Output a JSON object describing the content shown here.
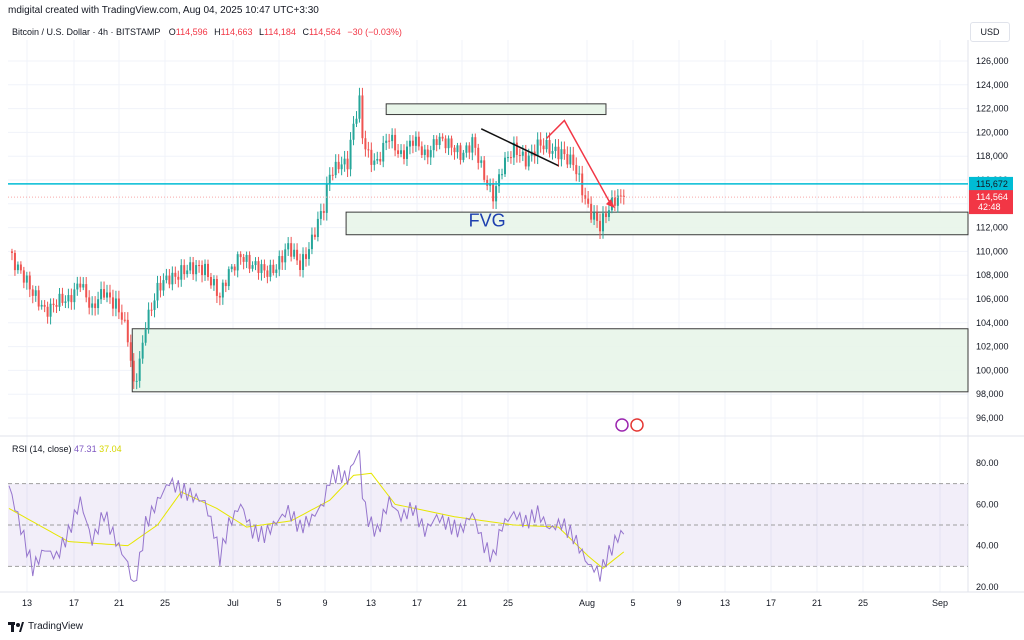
{
  "header": {
    "credit": "mdigital created with TradingView.com, Aug 04, 2025 10:47 UTC+3:30"
  },
  "symbol": {
    "name": "Bitcoin / U.S. Dollar · 4h · BITSTAMP",
    "open_label": "O",
    "open": "114,596",
    "high_label": "H",
    "high": "114,663",
    "low_label": "L",
    "low": "114,184",
    "close_label": "C",
    "close": "114,564",
    "change": "−30 (−0.03%)"
  },
  "currency": "USD",
  "footer": {
    "brand": "TradingView"
  },
  "colors": {
    "up": "#26a69a",
    "down": "#ef5350",
    "level": "#00bcd4",
    "rsi": "#9575cd",
    "rsi_ma": "#e6e600",
    "zone": "#e8f5e9"
  },
  "chart_data": [
    {
      "type": "candlestick",
      "title": "Bitcoin / U.S. Dollar · 4h · BITSTAMP",
      "ylabel": "USD",
      "ylim": [
        95000,
        127000
      ],
      "yticks": [
        96000,
        98000,
        100000,
        102000,
        104000,
        106000,
        108000,
        110000,
        112000,
        114000,
        116000,
        118000,
        120000,
        122000,
        124000,
        126000
      ],
      "ytick_labels": [
        "96,000",
        "98,000",
        "100,000",
        "102,000",
        "104,000",
        "106,000",
        "108,000",
        "110,000",
        "112,000",
        "114,000",
        "116,000",
        "118,000",
        "120,000",
        "122,000",
        "124,000",
        "126,000"
      ],
      "x_tick_labels": [
        "13",
        "17",
        "21",
        "25",
        "Jul",
        "5",
        "9",
        "13",
        "17",
        "21",
        "25",
        "Aug",
        "5",
        "9",
        "13",
        "17",
        "21",
        "25",
        "Sep"
      ],
      "price_path": [
        [
          0,
          110000
        ],
        [
          4,
          108500
        ],
        [
          8,
          106200
        ],
        [
          12,
          105200
        ],
        [
          16,
          105800
        ],
        [
          20,
          105600
        ],
        [
          24,
          107800
        ],
        [
          28,
          104900
        ],
        [
          32,
          106600
        ],
        [
          36,
          105800
        ],
        [
          38,
          104500
        ],
        [
          40,
          102500
        ],
        [
          42,
          98500
        ],
        [
          44,
          100800
        ],
        [
          46,
          104200
        ],
        [
          50,
          106600
        ],
        [
          54,
          107800
        ],
        [
          58,
          108500
        ],
        [
          62,
          108300
        ],
        [
          66,
          108700
        ],
        [
          69,
          107300
        ],
        [
          71,
          106000
        ],
        [
          74,
          108000
        ],
        [
          78,
          110000
        ],
        [
          82,
          108600
        ],
        [
          86,
          108300
        ],
        [
          90,
          108900
        ],
        [
          94,
          110100
        ],
        [
          98,
          109000
        ],
        [
          102,
          111000
        ],
        [
          106,
          113500
        ],
        [
          108,
          116600
        ],
        [
          111,
          117600
        ],
        [
          114,
          117300
        ],
        [
          116,
          120300
        ],
        [
          118,
          122500
        ],
        [
          119,
          119800
        ],
        [
          121,
          118300
        ],
        [
          124,
          117400
        ],
        [
          128,
          119500
        ],
        [
          132,
          118300
        ],
        [
          136,
          119200
        ],
        [
          140,
          118000
        ],
        [
          144,
          119700
        ],
        [
          148,
          118700
        ],
        [
          152,
          118300
        ],
        [
          156,
          119300
        ],
        [
          160,
          116000
        ],
        [
          163,
          114900
        ],
        [
          166,
          117200
        ],
        [
          170,
          118300
        ],
        [
          174,
          117900
        ],
        [
          178,
          118900
        ],
        [
          182,
          118400
        ],
        [
          186,
          118600
        ],
        [
          190,
          117200
        ],
        [
          193,
          115000
        ],
        [
          195,
          113800
        ],
        [
          197,
          113200
        ],
        [
          199,
          112200
        ],
        [
          201,
          112900
        ],
        [
          203,
          113800
        ],
        [
          205,
          114600
        ],
        [
          207,
          114564
        ]
      ],
      "last_price": 114564,
      "last_price_label": "114,564",
      "countdown": "42:48",
      "level_line": 115672,
      "level_label": "115,672",
      "annotations": {
        "fvg_label": "FVG",
        "supply_zone": [
          121500,
          122400
        ],
        "fvg_zone": [
          111400,
          113300
        ],
        "demand_zone": [
          98200,
          103500
        ],
        "trendline_black": [
          [
            120300,
            117200
          ]
        ],
        "red_arrow": "down then up"
      }
    },
    {
      "type": "line",
      "title": "RSI (14, close)",
      "rsi_value": "47.31",
      "rsi_ma_value": "37.04",
      "ylim": [
        15,
        90
      ],
      "yticks": [
        20,
        40,
        60,
        80
      ],
      "ytick_labels": [
        "20.00",
        "40.00",
        "60.00",
        "80.00"
      ],
      "band": [
        30,
        70
      ],
      "rsi_path": [
        [
          0,
          69
        ],
        [
          4,
          50
        ],
        [
          8,
          31
        ],
        [
          12,
          40
        ],
        [
          16,
          35
        ],
        [
          20,
          45
        ],
        [
          24,
          60
        ],
        [
          28,
          40
        ],
        [
          32,
          55
        ],
        [
          36,
          43
        ],
        [
          40,
          33
        ],
        [
          42,
          22
        ],
        [
          44,
          35
        ],
        [
          46,
          52
        ],
        [
          50,
          62
        ],
        [
          54,
          70
        ],
        [
          58,
          65
        ],
        [
          62,
          62
        ],
        [
          66,
          60
        ],
        [
          69,
          47
        ],
        [
          71,
          35
        ],
        [
          74,
          52
        ],
        [
          78,
          62
        ],
        [
          82,
          48
        ],
        [
          86,
          45
        ],
        [
          90,
          50
        ],
        [
          94,
          55
        ],
        [
          98,
          47
        ],
        [
          102,
          53
        ],
        [
          106,
          62
        ],
        [
          108,
          74
        ],
        [
          111,
          77
        ],
        [
          114,
          74
        ],
        [
          116,
          82
        ],
        [
          118,
          86
        ],
        [
          119,
          65
        ],
        [
          121,
          52
        ],
        [
          124,
          45
        ],
        [
          128,
          60
        ],
        [
          132,
          52
        ],
        [
          136,
          58
        ],
        [
          140,
          48
        ],
        [
          144,
          56
        ],
        [
          148,
          52
        ],
        [
          152,
          48
        ],
        [
          156,
          55
        ],
        [
          160,
          38
        ],
        [
          163,
          32
        ],
        [
          166,
          48
        ],
        [
          170,
          55
        ],
        [
          174,
          52
        ],
        [
          178,
          58
        ],
        [
          182,
          50
        ],
        [
          186,
          52
        ],
        [
          190,
          44
        ],
        [
          193,
          35
        ],
        [
          195,
          29
        ],
        [
          197,
          27
        ],
        [
          199,
          24
        ],
        [
          201,
          32
        ],
        [
          203,
          38
        ],
        [
          205,
          44
        ],
        [
          207,
          47
        ]
      ],
      "ma_path": [
        [
          0,
          58
        ],
        [
          20,
          42
        ],
        [
          40,
          40
        ],
        [
          50,
          50
        ],
        [
          58,
          66
        ],
        [
          70,
          58
        ],
        [
          80,
          49
        ],
        [
          95,
          52
        ],
        [
          108,
          62
        ],
        [
          116,
          74
        ],
        [
          122,
          75
        ],
        [
          130,
          60
        ],
        [
          150,
          54
        ],
        [
          170,
          50
        ],
        [
          185,
          49
        ],
        [
          195,
          35
        ],
        [
          200,
          29
        ],
        [
          207,
          37
        ]
      ]
    }
  ]
}
